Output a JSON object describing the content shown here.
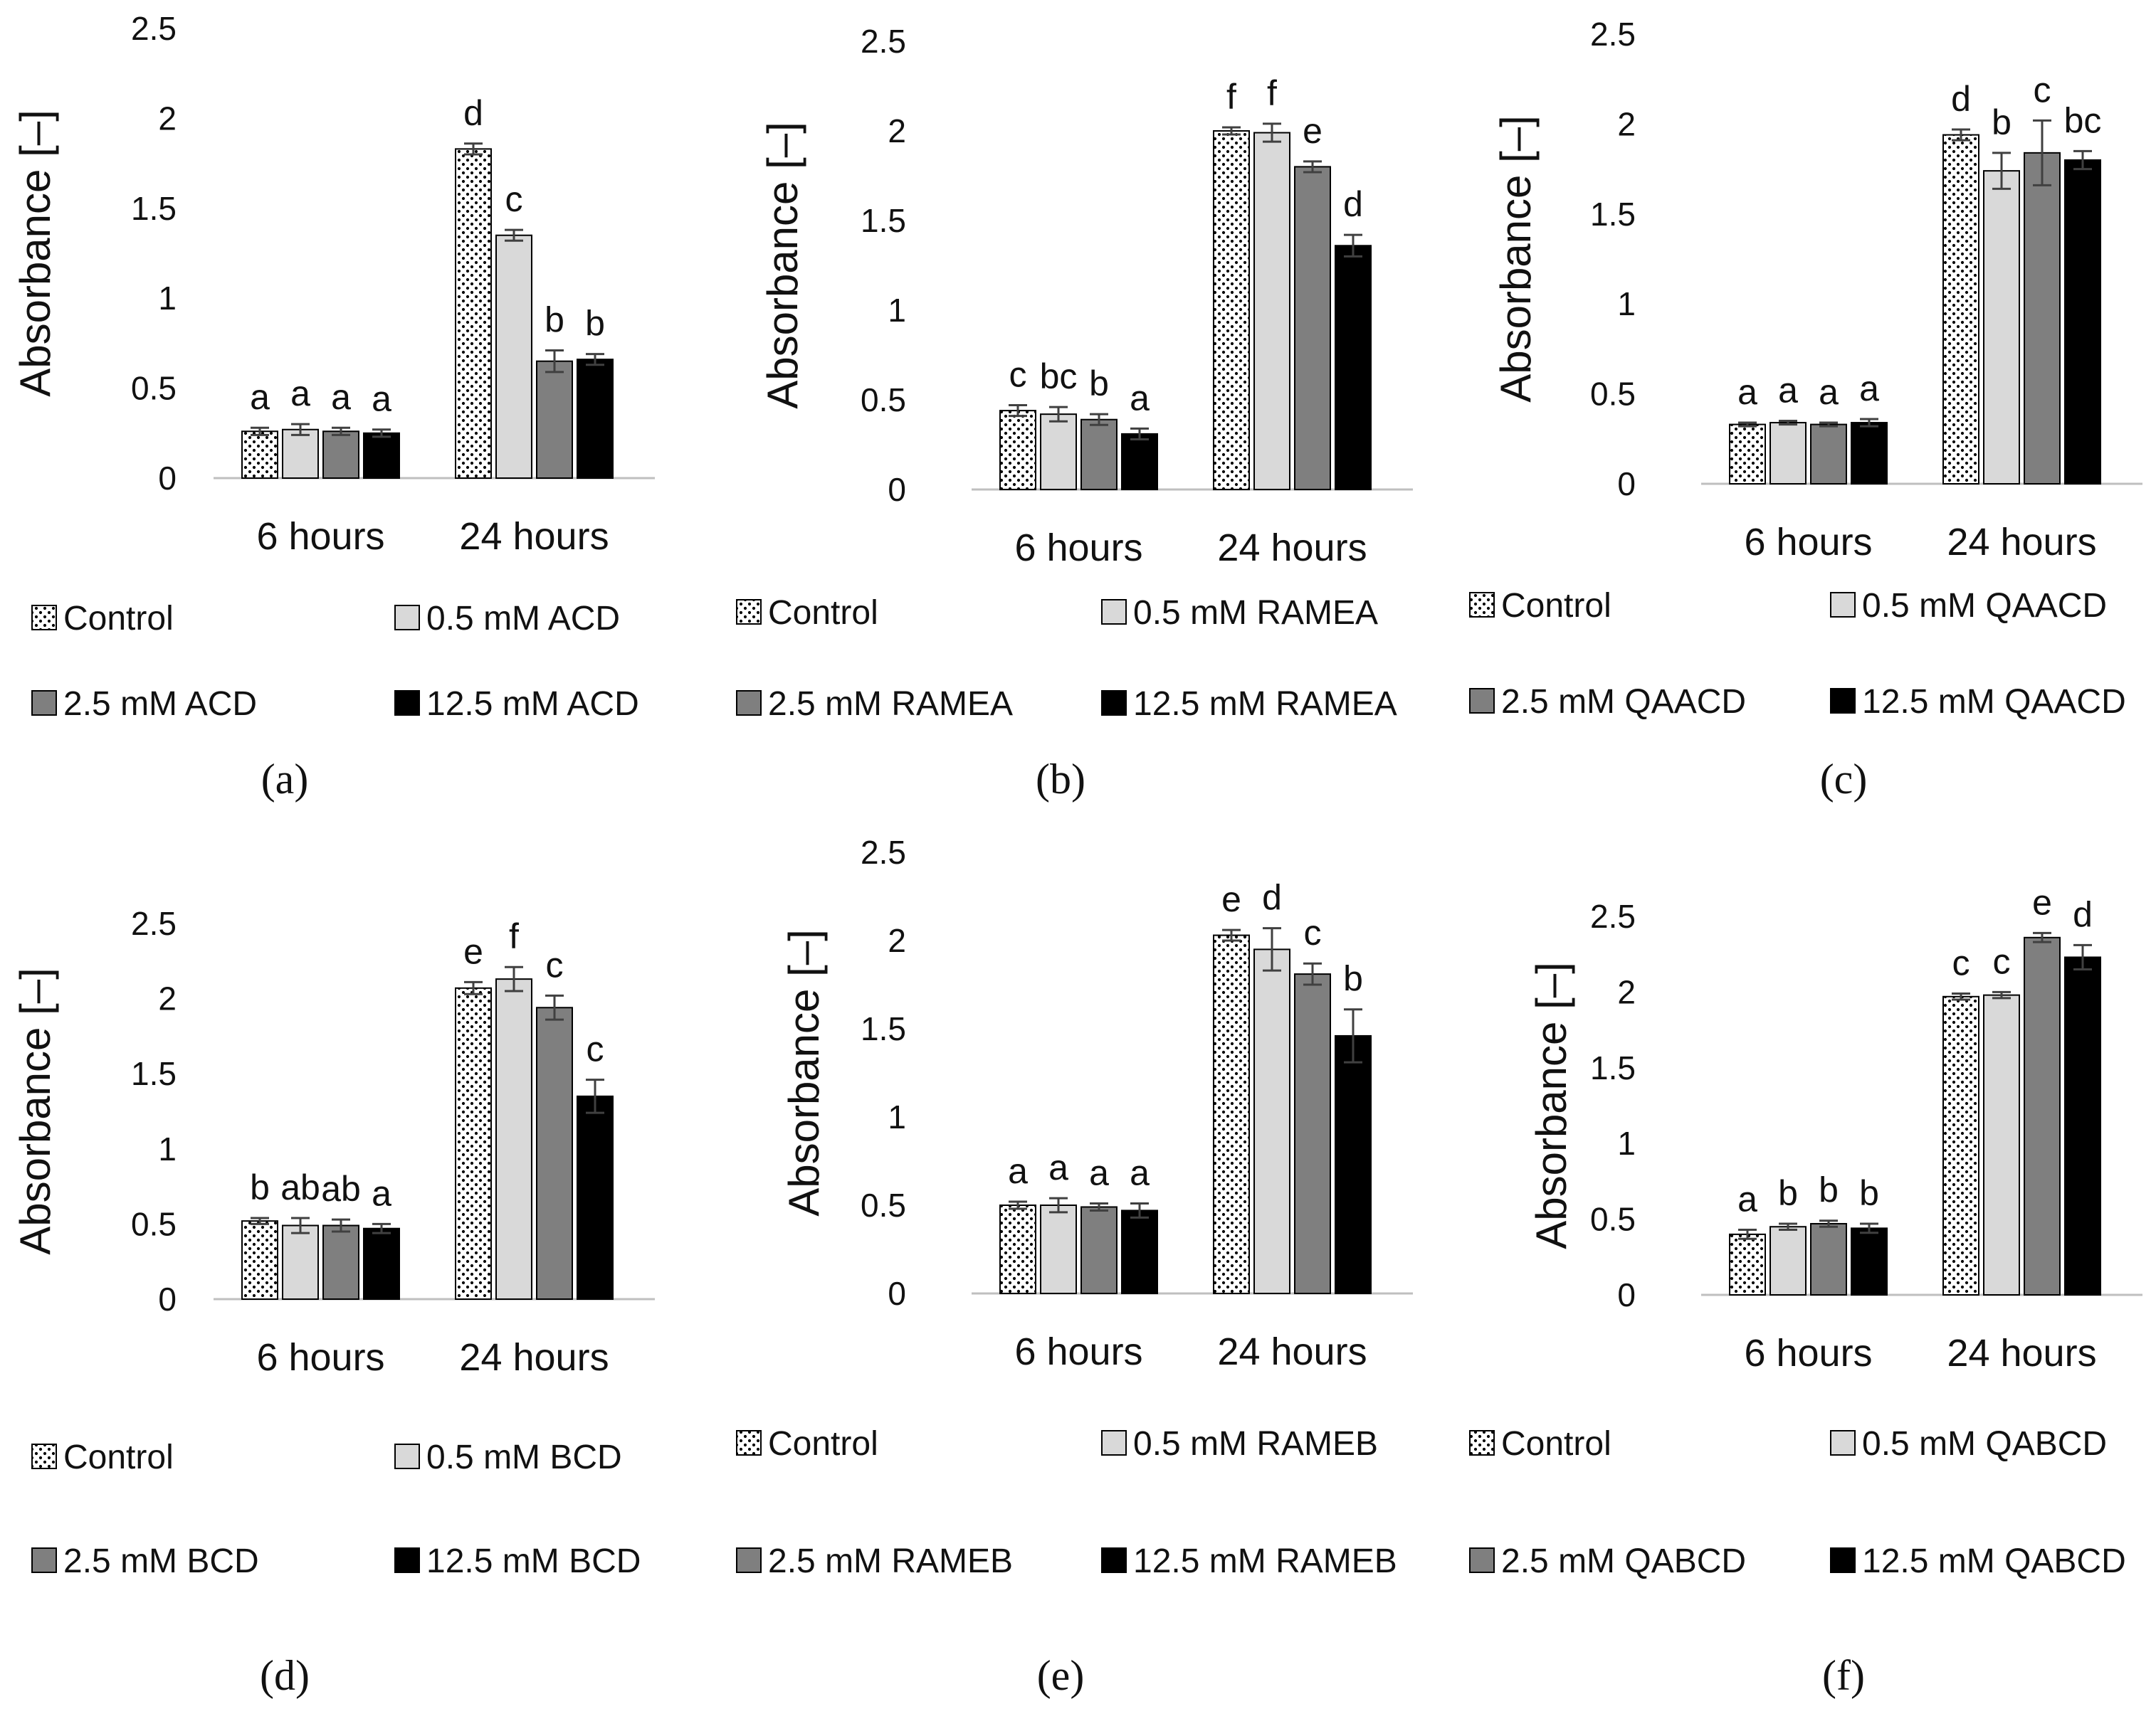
{
  "colors": {
    "control": "#ffffff",
    "s05": "#d9d9d9",
    "s25": "#7f7f7f",
    "s125": "#000000",
    "axis": "#bfbfbf",
    "error": "#404040"
  },
  "chart_data": [
    {
      "type": "bar",
      "panel_label": "(a)",
      "ylabel": "Absorbance [–]",
      "ylim": [
        0,
        2.5
      ],
      "yticks": [
        "0",
        "0.5",
        "1",
        "1.5",
        "2",
        "2.5"
      ],
      "categories": [
        "6 hours",
        "24 hours"
      ],
      "series": [
        {
          "name": "Control",
          "style": "control",
          "values": [
            0.26,
            1.83
          ],
          "errors": [
            0.02,
            0.03
          ],
          "letters": [
            "a",
            "d"
          ]
        },
        {
          "name": "0.5 mM ACD",
          "style": "s05",
          "values": [
            0.27,
            1.35
          ],
          "errors": [
            0.03,
            0.03
          ],
          "letters": [
            "a",
            "c"
          ]
        },
        {
          "name": "2.5 mM ACD",
          "style": "s25",
          "values": [
            0.26,
            0.65
          ],
          "errors": [
            0.02,
            0.06
          ],
          "letters": [
            "a",
            "b"
          ]
        },
        {
          "name": "12.5 mM ACD",
          "style": "s125",
          "values": [
            0.25,
            0.66
          ],
          "errors": [
            0.02,
            0.03
          ],
          "letters": [
            "a",
            "b"
          ]
        }
      ]
    },
    {
      "type": "bar",
      "panel_label": "(b)",
      "ylabel": "Absorbance [–]",
      "ylim": [
        0,
        2.5
      ],
      "yticks": [
        "0",
        "0.5",
        "1",
        "1.5",
        "2",
        "2.5"
      ],
      "categories": [
        "6 hours",
        "24 hours"
      ],
      "series": [
        {
          "name": "Control",
          "style": "control",
          "values": [
            0.44,
            2.0
          ],
          "errors": [
            0.03,
            0.02
          ],
          "letters": [
            "c",
            "f"
          ]
        },
        {
          "name": "0.5 mM RAMEA",
          "style": "s05",
          "values": [
            0.42,
            1.99
          ],
          "errors": [
            0.04,
            0.05
          ],
          "letters": [
            "bc",
            "f"
          ]
        },
        {
          "name": "2.5 mM RAMEA",
          "style": "s25",
          "values": [
            0.39,
            1.8
          ],
          "errors": [
            0.03,
            0.03
          ],
          "letters": [
            "b",
            "e"
          ]
        },
        {
          "name": "12.5 mM RAMEA",
          "style": "s125",
          "values": [
            0.31,
            1.36
          ],
          "errors": [
            0.03,
            0.06
          ],
          "letters": [
            "a",
            "d"
          ]
        }
      ]
    },
    {
      "type": "bar",
      "panel_label": "(c)",
      "ylabel": "Absorbance [–]",
      "ylim": [
        0,
        2.5
      ],
      "yticks": [
        "0",
        "0.5",
        "1",
        "1.5",
        "2",
        "2.5"
      ],
      "categories": [
        "6 hours",
        "24 hours"
      ],
      "series": [
        {
          "name": "Control",
          "style": "control",
          "values": [
            0.33,
            1.94
          ],
          "errors": [
            0.01,
            0.03
          ],
          "letters": [
            "a",
            "d"
          ]
        },
        {
          "name": "0.5 mM QAACD",
          "style": "s05",
          "values": [
            0.34,
            1.74
          ],
          "errors": [
            0.01,
            0.1
          ],
          "letters": [
            "a",
            "b"
          ]
        },
        {
          "name": "2.5 mM QAACD",
          "style": "s25",
          "values": [
            0.33,
            1.84
          ],
          "errors": [
            0.01,
            0.18
          ],
          "letters": [
            "a",
            "c"
          ]
        },
        {
          "name": "12.5 mM QAACD",
          "style": "s125",
          "values": [
            0.34,
            1.8
          ],
          "errors": [
            0.02,
            0.05
          ],
          "letters": [
            "a",
            "bc"
          ]
        }
      ]
    },
    {
      "type": "bar",
      "panel_label": "(d)",
      "ylabel": "Absorbance [–]",
      "ylim": [
        0,
        2.5
      ],
      "yticks": [
        "0",
        "0.5",
        "1",
        "1.5",
        "2",
        "2.5"
      ],
      "categories": [
        "6 hours",
        "24 hours"
      ],
      "series": [
        {
          "name": "Control",
          "style": "control",
          "values": [
            0.52,
            2.07
          ],
          "errors": [
            0.02,
            0.04
          ],
          "letters": [
            "b",
            "e"
          ]
        },
        {
          "name": "0.5 mM BCD",
          "style": "s05",
          "values": [
            0.49,
            2.13
          ],
          "errors": [
            0.05,
            0.08
          ],
          "letters": [
            "ab",
            "f"
          ]
        },
        {
          "name": "2.5 mM BCD",
          "style": "s25",
          "values": [
            0.49,
            1.94
          ],
          "errors": [
            0.04,
            0.08
          ],
          "letters": [
            "ab",
            "c"
          ]
        },
        {
          "name": "12.5 mM BCD",
          "style": "s125",
          "values": [
            0.47,
            1.35
          ],
          "errors": [
            0.03,
            0.11
          ],
          "letters": [
            "a",
            "c"
          ]
        }
      ]
    },
    {
      "type": "bar",
      "panel_label": "(e)",
      "ylabel": "Absorbance [–]",
      "ylim": [
        0,
        2.5
      ],
      "yticks": [
        "0",
        "0.5",
        "1",
        "1.5",
        "2",
        "2.5"
      ],
      "categories": [
        "6 hours",
        "24 hours"
      ],
      "series": [
        {
          "name": "Control",
          "style": "control",
          "values": [
            0.5,
            2.03
          ],
          "errors": [
            0.02,
            0.03
          ],
          "letters": [
            "a",
            "e"
          ]
        },
        {
          "name": "0.5 mM RAMEB",
          "style": "s05",
          "values": [
            0.5,
            1.95
          ],
          "errors": [
            0.04,
            0.12
          ],
          "letters": [
            "a",
            "d"
          ]
        },
        {
          "name": "2.5 mM RAMEB",
          "style": "s25",
          "values": [
            0.49,
            1.81
          ],
          "errors": [
            0.02,
            0.06
          ],
          "letters": [
            "a",
            "c"
          ]
        },
        {
          "name": "12.5 mM RAMEB",
          "style": "s125",
          "values": [
            0.47,
            1.46
          ],
          "errors": [
            0.04,
            0.15
          ],
          "letters": [
            "a",
            "b"
          ]
        }
      ]
    },
    {
      "type": "bar",
      "panel_label": "(f)",
      "ylabel": "Absorbance [–]",
      "ylim": [
        0,
        2.5
      ],
      "yticks": [
        "0",
        "0.5",
        "1",
        "1.5",
        "2",
        "2.5"
      ],
      "categories": [
        "6 hours",
        "24 hours"
      ],
      "series": [
        {
          "name": "Control",
          "style": "control",
          "values": [
            0.4,
            1.97
          ],
          "errors": [
            0.03,
            0.02
          ],
          "letters": [
            "a",
            "c"
          ]
        },
        {
          "name": "0.5 mM QABCD",
          "style": "s05",
          "values": [
            0.45,
            1.98
          ],
          "errors": [
            0.02,
            0.02
          ],
          "letters": [
            "b",
            "c"
          ]
        },
        {
          "name": "2.5 mM QABCD",
          "style": "s25",
          "values": [
            0.47,
            2.36
          ],
          "errors": [
            0.02,
            0.03
          ],
          "letters": [
            "b",
            "e"
          ]
        },
        {
          "name": "12.5 mM QABCD",
          "style": "s125",
          "values": [
            0.44,
            2.23
          ],
          "errors": [
            0.03,
            0.08
          ],
          "letters": [
            "b",
            "d"
          ]
        }
      ]
    }
  ]
}
